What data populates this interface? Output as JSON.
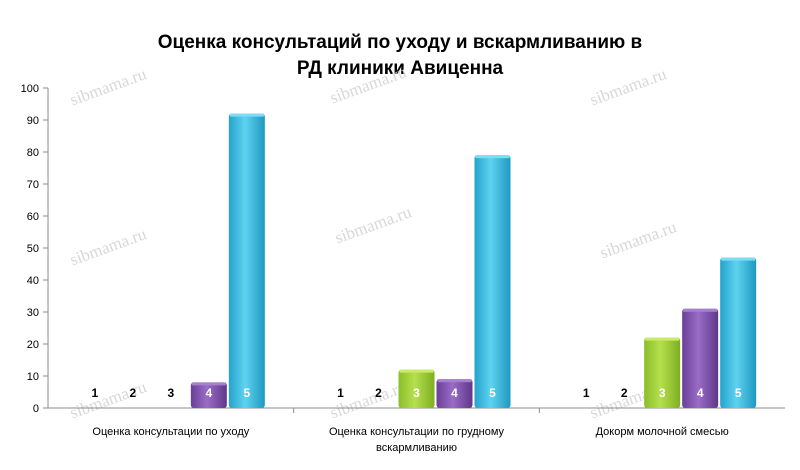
{
  "chart_data": {
    "type": "bar",
    "title": [
      "Оценка консультаций по уходу и вскармливанию в",
      "РД клиники Авиценна"
    ],
    "xlabel": "",
    "ylabel": "",
    "ylim": [
      0,
      100
    ],
    "yticks": [
      0,
      10,
      20,
      30,
      40,
      50,
      60,
      70,
      80,
      90,
      100
    ],
    "grid": false,
    "legend": "none",
    "categories": [
      [
        "Оценка консультации по уходу"
      ],
      [
        "Оценка консультации по грудному",
        "вскармливанию"
      ],
      [
        "Докорм молочной смесью"
      ]
    ],
    "series": [
      {
        "name": "1",
        "color": "#7f9c2a",
        "values": [
          0,
          0,
          0
        ]
      },
      {
        "name": "2",
        "color": "#7f9c2a",
        "values": [
          0,
          0,
          0
        ]
      },
      {
        "name": "3",
        "color": "#9acd32",
        "values": [
          0,
          12,
          22
        ]
      },
      {
        "name": "4",
        "color": "#7b4fa6",
        "values": [
          8,
          9,
          31
        ]
      },
      {
        "name": "5",
        "color": "#33b5dc",
        "values": [
          92,
          79,
          47
        ]
      }
    ]
  },
  "watermark": "sibmama.ru"
}
